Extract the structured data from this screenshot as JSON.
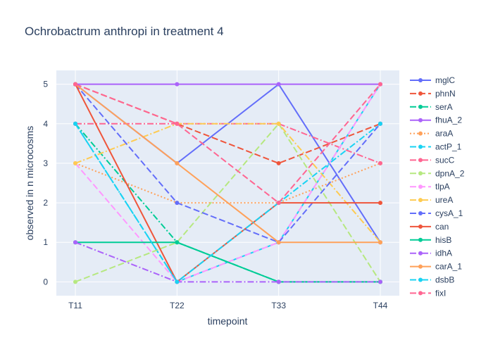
{
  "chart_data": {
    "type": "line",
    "title": "Ochrobactrum anthropi in treatment 4",
    "xlabel": "timepoint",
    "ylabel": "observed in n microcosms",
    "categories": [
      "T11",
      "T22",
      "T33",
      "T44"
    ],
    "ylim": [
      -0.35,
      5.35
    ],
    "yticks": [
      0,
      1,
      2,
      3,
      4,
      5
    ],
    "grid": true,
    "legend_position": "right",
    "series": [
      {
        "name": "mglC",
        "values": [
          5,
          3,
          5,
          1
        ],
        "color": "#636efa",
        "dash": "solid"
      },
      {
        "name": "phnN",
        "values": [
          5,
          4,
          3,
          4
        ],
        "color": "#EF553B",
        "dash": "dash"
      },
      {
        "name": "serA",
        "values": [
          4,
          1,
          0,
          0
        ],
        "color": "#00cc96",
        "dash": "dashdot"
      },
      {
        "name": "fhuA_2",
        "values": [
          5,
          5,
          5,
          5
        ],
        "color": "#ab63fa",
        "dash": "solid"
      },
      {
        "name": "araA",
        "values": [
          3,
          2,
          2,
          3
        ],
        "color": "#FFA15A",
        "dash": "dot"
      },
      {
        "name": "actP_1",
        "values": [
          4,
          0,
          1,
          5
        ],
        "color": "#19d3f3",
        "dash": "dash"
      },
      {
        "name": "sucC",
        "values": [
          4,
          4,
          4,
          3
        ],
        "color": "#FF6692",
        "dash": "dashdot"
      },
      {
        "name": "dpnA_2",
        "values": [
          0,
          1,
          4,
          0
        ],
        "color": "#B6E880",
        "dash": "dash"
      },
      {
        "name": "tlpA",
        "values": [
          3,
          0,
          1,
          5
        ],
        "color": "#FF97FF",
        "dash": "dash"
      },
      {
        "name": "ureA",
        "values": [
          3,
          4,
          4,
          1
        ],
        "color": "#FECB52",
        "dash": "dashdot"
      },
      {
        "name": "cysA_1",
        "values": [
          5,
          2,
          1,
          4
        ],
        "color": "#636efa",
        "dash": "dash"
      },
      {
        "name": "can",
        "values": [
          5,
          0,
          2,
          2
        ],
        "color": "#EF553B",
        "dash": "solid"
      },
      {
        "name": "hisB",
        "values": [
          1,
          1,
          0,
          0
        ],
        "color": "#00cc96",
        "dash": "solid"
      },
      {
        "name": "idhA",
        "values": [
          1,
          0,
          0,
          0
        ],
        "color": "#ab63fa",
        "dash": "dashdot"
      },
      {
        "name": "carA_1",
        "values": [
          5,
          3,
          1,
          1
        ],
        "color": "#FFA15A",
        "dash": "solid"
      },
      {
        "name": "dsbB",
        "values": [
          4,
          0,
          2,
          4
        ],
        "color": "#19d3f3",
        "dash": "dashdot"
      },
      {
        "name": "fixI",
        "values": [
          5,
          4,
          2,
          5
        ],
        "color": "#FF6692",
        "dash": "dash"
      }
    ]
  }
}
